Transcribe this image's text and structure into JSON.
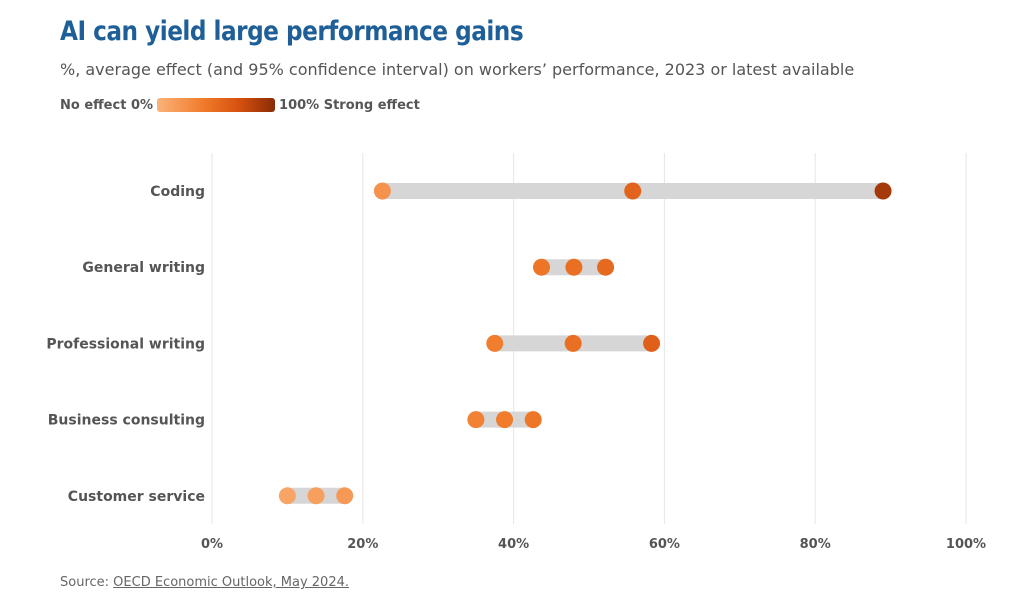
{
  "title": "AI can yield large performance gains",
  "subtitle": "%, average effect (and 95% confidence interval) on workers’ performance, 2023 or latest available",
  "legend": {
    "min_label": "No effect 0%",
    "max_label": "100% Strong effect",
    "colors": [
      "#fbb27a",
      "#f07a2a",
      "#d5500f",
      "#8a2b05"
    ]
  },
  "source": {
    "prefix": "Source: ",
    "link_text": "OECD Economic Outlook, May 2024."
  },
  "chart_data": {
    "type": "dumbbell",
    "xlim": [
      0,
      100
    ],
    "x_ticks": [
      0,
      20,
      40,
      60,
      80,
      100
    ],
    "x_tick_labels": [
      "0%",
      "20%",
      "40%",
      "60%",
      "80%",
      "100%"
    ],
    "grid": true,
    "categories": [
      "Coding",
      "General writing",
      "Professional writing",
      "Business consulting",
      "Customer service"
    ],
    "series": [
      {
        "values": [
          22.6,
          43.7,
          37.5,
          35.0,
          10.0
        ]
      },
      {
        "values": [
          55.8,
          48.0,
          47.9,
          38.8,
          13.8
        ]
      },
      {
        "values": [
          89.0,
          52.2,
          58.3,
          42.6,
          17.6
        ]
      }
    ],
    "colors": {
      "range_bar": "#d6d6d6",
      "grid": "#e6e6e6",
      "axis_text": "#555555"
    }
  }
}
